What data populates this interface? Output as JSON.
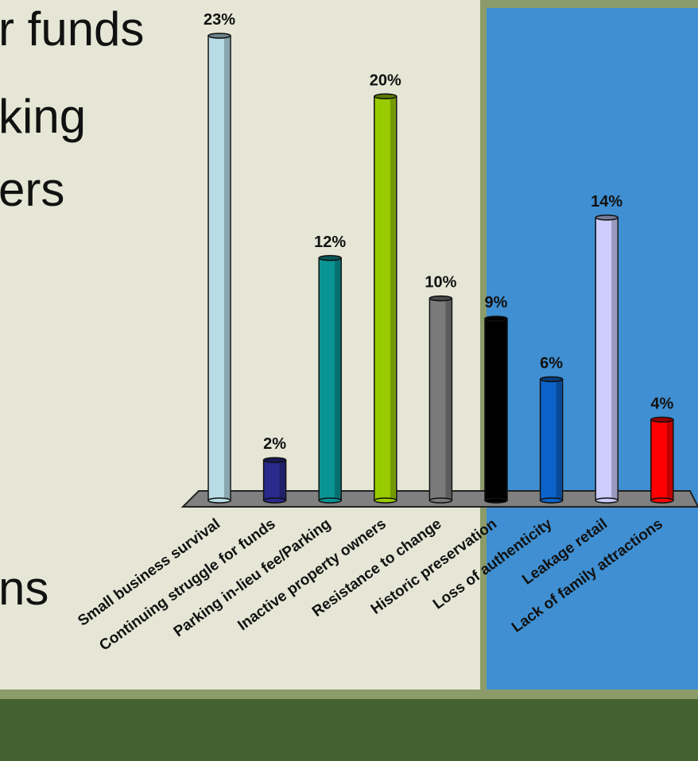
{
  "slide": {
    "bullets": [
      "r funds",
      "king",
      "ers",
      "ns"
    ]
  },
  "chart_data": {
    "type": "bar",
    "categories": [
      "Small business survival",
      "Continuing struggle for funds",
      "Parking in-lieu fee/Parking",
      "Inactive property owners",
      "Resistance to change",
      "Historic preservation",
      "Loss of authenticity",
      "Leakage retail",
      "Lack of family attractions"
    ],
    "values": [
      23,
      2,
      12,
      20,
      10,
      9,
      6,
      14,
      4
    ],
    "value_labels": [
      "23%",
      "2%",
      "12%",
      "20%",
      "10%",
      "9%",
      "6%",
      "14%",
      "4%"
    ],
    "colors": [
      "#b8dce6",
      "#2a2a8c",
      "#0a9494",
      "#99cc00",
      "#7a7a7a",
      "#000000",
      "#0b63c9",
      "#ccccff",
      "#ff0000"
    ],
    "ylim": [
      0,
      23
    ],
    "grid": false,
    "legend": "none",
    "style": "3d-cylinder"
  }
}
